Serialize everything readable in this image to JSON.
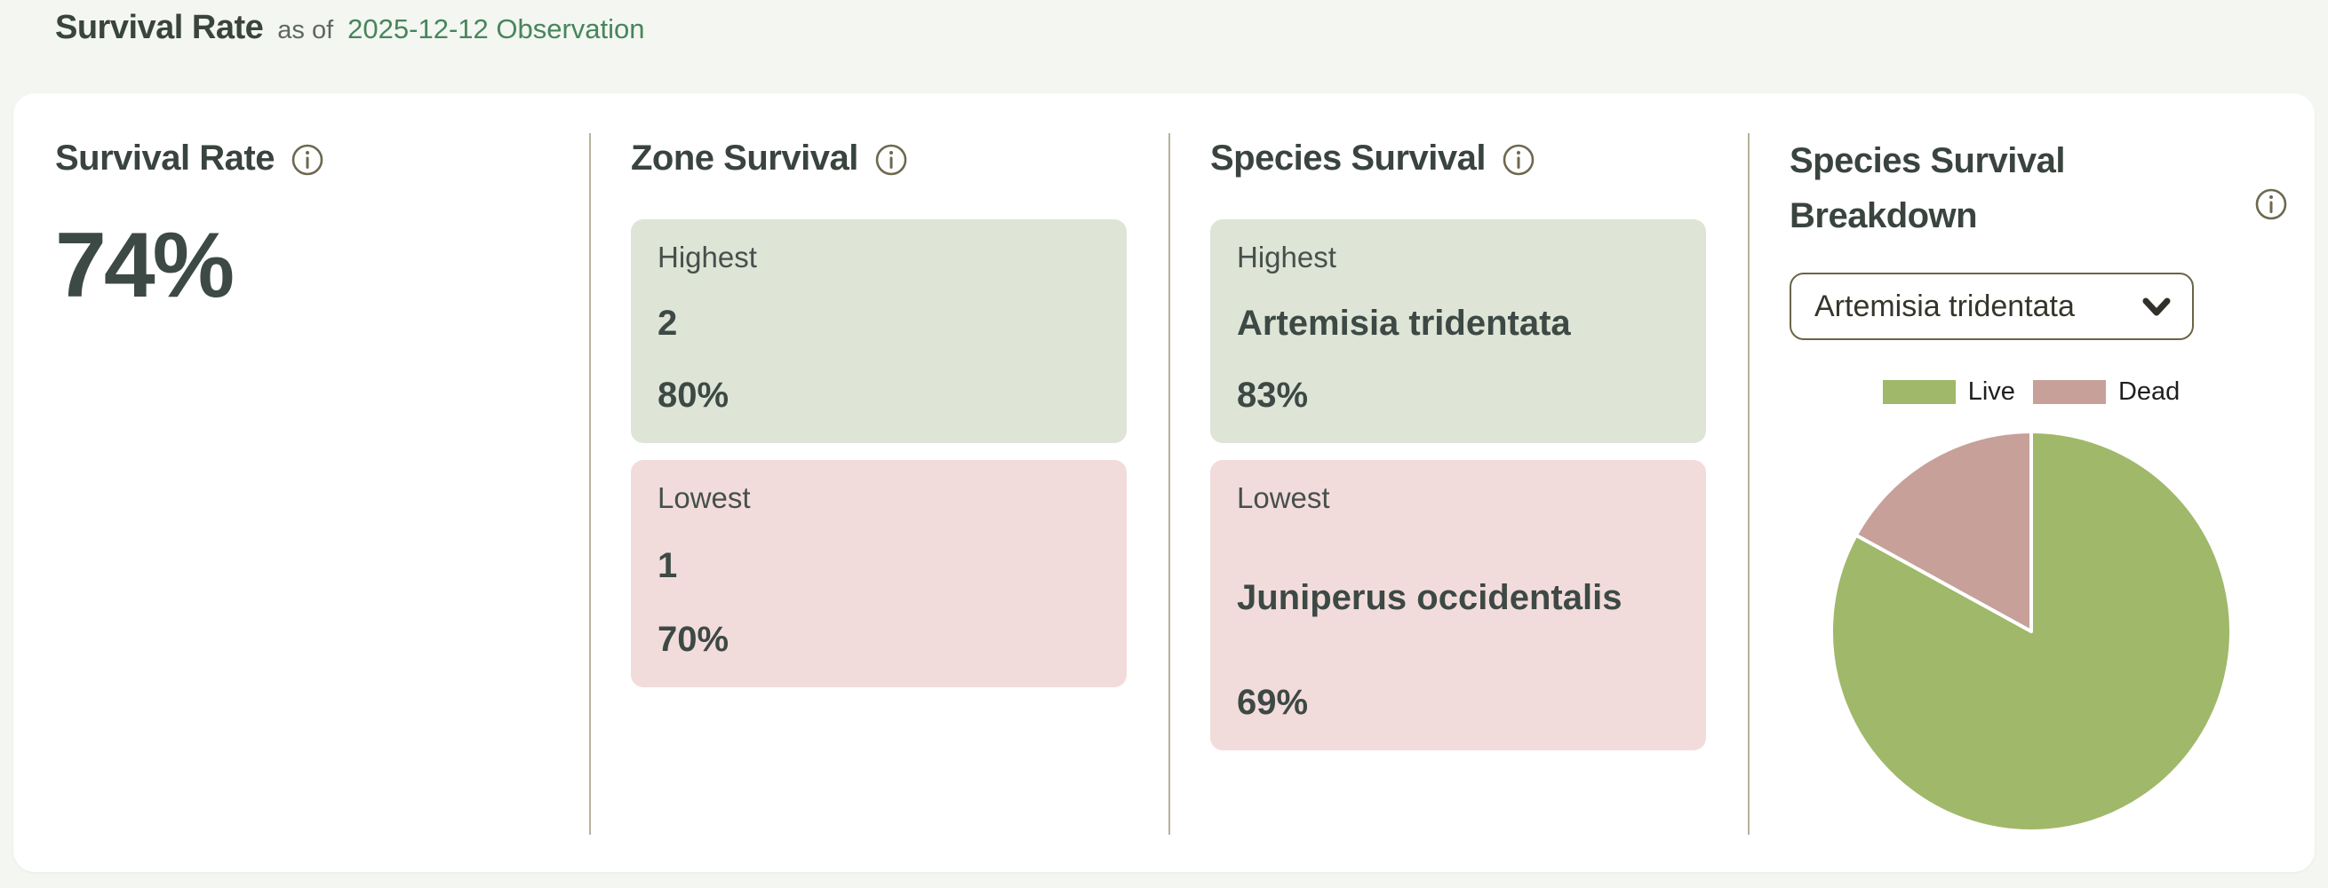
{
  "header": {
    "title": "Survival Rate",
    "as_of": "as of",
    "observation_link": "2025-12-12 Observation"
  },
  "panels": {
    "survival_rate": {
      "title": "Survival Rate",
      "value": "74%"
    },
    "zone_survival": {
      "title": "Zone Survival",
      "highest": {
        "label": "Highest",
        "name": "2",
        "value": "80%"
      },
      "lowest": {
        "label": "Lowest",
        "name": "1",
        "value": "70%"
      }
    },
    "species_survival": {
      "title": "Species Survival",
      "highest": {
        "label": "Highest",
        "name": "Artemisia tridentata",
        "value": "83%"
      },
      "lowest": {
        "label": "Lowest",
        "name": "Juniperus occidentalis",
        "value": "69%"
      }
    },
    "species_breakdown": {
      "title": "Species Survival Breakdown",
      "dropdown_value": "Artemisia tridentata"
    }
  },
  "chart_data": {
    "type": "pie",
    "title": "Species Survival Breakdown",
    "labels": [
      "Live",
      "Dead"
    ],
    "values": [
      83,
      17
    ],
    "colors": [
      "#9fb86a",
      "#c7a09a"
    ],
    "legend_position": "top",
    "start_angle_deg": 0,
    "direction": "clockwise"
  },
  "colors": {
    "page_background": "#f3f6f1",
    "card_background": "#ffffff",
    "accent_link_green": "#47855c",
    "box_green": "#dee4d6",
    "box_pink": "#f2dcdb",
    "divider_olive": "#aba58b",
    "info_icon_olive": "#6e684e",
    "text_dark": "#3d4945",
    "pie_live_green": "#9fb86a",
    "pie_dead_mauve": "#c7a09a"
  },
  "icons": {
    "info": "info-icon",
    "chevron": "chevron-down-icon"
  }
}
